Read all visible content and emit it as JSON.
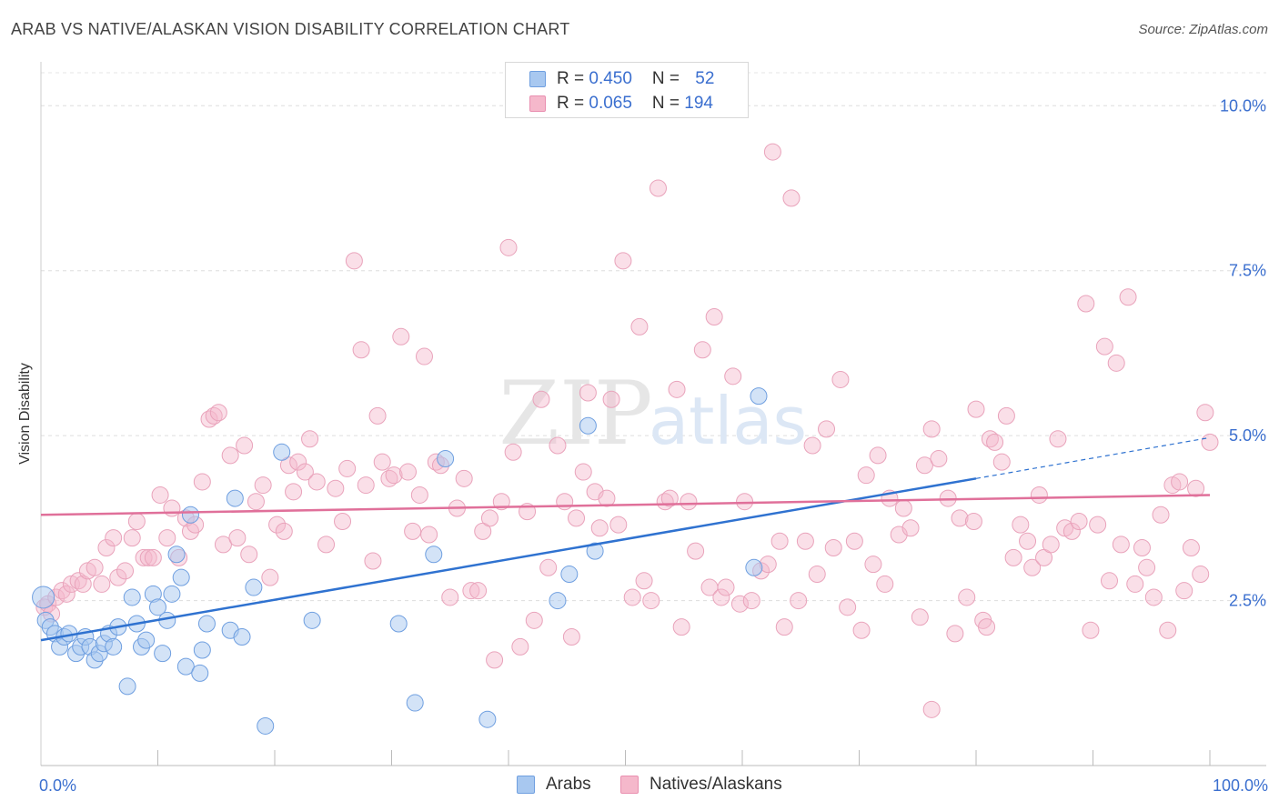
{
  "header": {
    "title": "ARAB VS NATIVE/ALASKAN VISION DISABILITY CORRELATION CHART",
    "source": "Source: ZipAtlas.com"
  },
  "watermark": {
    "zip": "ZIP",
    "atlas": "atlas"
  },
  "legend_top": {
    "rows": [
      {
        "r_label": "R = ",
        "r_value": "0.450",
        "n_label": "N = ",
        "n_value": "52",
        "color": "#a8c8f0"
      },
      {
        "r_label": "R = ",
        "r_value": "0.065",
        "n_label": "N = ",
        "n_value": "194",
        "color": "#f5b8cb"
      }
    ]
  },
  "legend_bottom": {
    "items": [
      {
        "label": "Arabs",
        "color": "#a8c8f0"
      },
      {
        "label": "Natives/Alaskans",
        "color": "#f5b8cb"
      }
    ]
  },
  "chart_data": {
    "type": "scatter",
    "title": "ARAB VS NATIVE/ALASKAN VISION DISABILITY CORRELATION CHART",
    "xlabel": "",
    "ylabel": "Vision Disability",
    "xlim": [
      0,
      100
    ],
    "ylim": [
      0,
      10.5
    ],
    "x_tick_labels": [
      "0.0%",
      "100.0%"
    ],
    "y_ticks": [
      2.5,
      5.0,
      7.5,
      10.0
    ],
    "y_tick_labels": [
      "2.5%",
      "5.0%",
      "7.5%",
      "10.0%"
    ],
    "grid": true,
    "legend": "top-center",
    "colors": {
      "arabs": "#4a86d8",
      "natives": "#e57fa3",
      "arabs_line": "#2f72d0",
      "natives_line": "#e0709a"
    },
    "series": [
      {
        "name": "Arabs",
        "trend": {
          "x": [
            0,
            80
          ],
          "y": [
            1.9,
            4.35
          ],
          "dashed_to": [
            100,
            4.97
          ]
        },
        "points": [
          [
            0.2,
            2.55
          ],
          [
            0.4,
            2.2
          ],
          [
            0.8,
            2.1
          ],
          [
            1.2,
            2.0
          ],
          [
            1.6,
            1.8
          ],
          [
            2.0,
            1.95
          ],
          [
            2.4,
            2.0
          ],
          [
            3.0,
            1.7
          ],
          [
            3.4,
            1.8
          ],
          [
            3.8,
            1.95
          ],
          [
            4.2,
            1.8
          ],
          [
            4.6,
            1.6
          ],
          [
            5.0,
            1.7
          ],
          [
            5.4,
            1.85
          ],
          [
            5.8,
            2.0
          ],
          [
            6.2,
            1.8
          ],
          [
            6.6,
            2.1
          ],
          [
            7.4,
            1.2
          ],
          [
            7.8,
            2.55
          ],
          [
            8.2,
            2.15
          ],
          [
            8.6,
            1.8
          ],
          [
            9.0,
            1.9
          ],
          [
            9.6,
            2.6
          ],
          [
            10.0,
            2.4
          ],
          [
            10.4,
            1.7
          ],
          [
            10.8,
            2.2
          ],
          [
            11.2,
            2.6
          ],
          [
            11.6,
            3.2
          ],
          [
            12.0,
            2.85
          ],
          [
            12.4,
            1.5
          ],
          [
            12.8,
            3.8
          ],
          [
            13.6,
            1.4
          ],
          [
            13.8,
            1.75
          ],
          [
            14.2,
            2.15
          ],
          [
            16.2,
            2.05
          ],
          [
            16.6,
            4.05
          ],
          [
            17.2,
            1.95
          ],
          [
            18.2,
            2.7
          ],
          [
            19.2,
            0.6
          ],
          [
            20.6,
            4.75
          ],
          [
            23.2,
            2.2
          ],
          [
            30.6,
            2.15
          ],
          [
            32.0,
            0.95
          ],
          [
            33.6,
            3.2
          ],
          [
            34.6,
            4.65
          ],
          [
            38.2,
            0.7
          ],
          [
            44.2,
            2.5
          ],
          [
            45.2,
            2.9
          ],
          [
            46.8,
            5.15
          ],
          [
            47.4,
            3.25
          ],
          [
            61.0,
            3.0
          ],
          [
            61.4,
            5.6
          ]
        ]
      },
      {
        "name": "Natives/Alaskans",
        "trend": {
          "x": [
            0,
            100
          ],
          "y": [
            3.8,
            4.1
          ]
        },
        "points": [
          [
            0.3,
            2.4
          ],
          [
            0.6,
            2.45
          ],
          [
            0.9,
            2.3
          ],
          [
            1.3,
            2.55
          ],
          [
            1.8,
            2.65
          ],
          [
            2.2,
            2.6
          ],
          [
            2.6,
            2.75
          ],
          [
            3.2,
            2.8
          ],
          [
            3.6,
            2.75
          ],
          [
            4.0,
            2.95
          ],
          [
            4.6,
            3.0
          ],
          [
            5.2,
            2.75
          ],
          [
            5.6,
            3.3
          ],
          [
            6.2,
            3.45
          ],
          [
            6.6,
            2.85
          ],
          [
            7.2,
            2.95
          ],
          [
            7.8,
            3.45
          ],
          [
            8.2,
            3.7
          ],
          [
            8.8,
            3.15
          ],
          [
            9.2,
            3.15
          ],
          [
            9.6,
            3.15
          ],
          [
            10.2,
            4.1
          ],
          [
            10.8,
            3.45
          ],
          [
            11.2,
            3.9
          ],
          [
            11.8,
            3.15
          ],
          [
            12.4,
            3.75
          ],
          [
            12.8,
            3.55
          ],
          [
            13.2,
            3.65
          ],
          [
            13.8,
            4.3
          ],
          [
            14.4,
            5.25
          ],
          [
            14.8,
            5.3
          ],
          [
            15.2,
            5.35
          ],
          [
            15.6,
            3.35
          ],
          [
            16.2,
            4.7
          ],
          [
            16.8,
            3.45
          ],
          [
            17.4,
            4.85
          ],
          [
            17.8,
            3.2
          ],
          [
            18.4,
            4.0
          ],
          [
            19.0,
            4.25
          ],
          [
            19.6,
            2.85
          ],
          [
            20.2,
            3.65
          ],
          [
            20.8,
            3.55
          ],
          [
            21.2,
            4.55
          ],
          [
            21.6,
            4.15
          ],
          [
            22.0,
            4.6
          ],
          [
            22.6,
            4.45
          ],
          [
            23.0,
            4.95
          ],
          [
            23.6,
            4.3
          ],
          [
            24.4,
            3.35
          ],
          [
            25.2,
            4.2
          ],
          [
            25.8,
            3.7
          ],
          [
            26.2,
            4.5
          ],
          [
            26.8,
            7.65
          ],
          [
            27.4,
            6.3
          ],
          [
            27.8,
            4.25
          ],
          [
            28.4,
            3.1
          ],
          [
            28.8,
            5.3
          ],
          [
            29.2,
            4.6
          ],
          [
            29.8,
            4.35
          ],
          [
            30.2,
            4.4
          ],
          [
            30.8,
            6.5
          ],
          [
            31.4,
            4.45
          ],
          [
            31.8,
            3.55
          ],
          [
            32.4,
            4.1
          ],
          [
            32.8,
            6.2
          ],
          [
            33.2,
            3.5
          ],
          [
            33.8,
            4.6
          ],
          [
            34.2,
            4.55
          ],
          [
            35.0,
            2.55
          ],
          [
            35.6,
            3.9
          ],
          [
            36.2,
            4.35
          ],
          [
            36.8,
            2.65
          ],
          [
            37.4,
            2.65
          ],
          [
            37.8,
            3.55
          ],
          [
            38.4,
            3.75
          ],
          [
            38.8,
            1.6
          ],
          [
            39.4,
            4.0
          ],
          [
            40.0,
            7.85
          ],
          [
            40.4,
            4.75
          ],
          [
            41.0,
            1.8
          ],
          [
            41.6,
            3.85
          ],
          [
            42.2,
            2.2
          ],
          [
            42.8,
            5.55
          ],
          [
            43.4,
            3.0
          ],
          [
            44.2,
            4.85
          ],
          [
            44.8,
            4.0
          ],
          [
            45.4,
            1.95
          ],
          [
            45.8,
            3.75
          ],
          [
            46.4,
            4.45
          ],
          [
            46.8,
            5.65
          ],
          [
            47.4,
            4.15
          ],
          [
            47.8,
            3.6
          ],
          [
            48.4,
            4.05
          ],
          [
            48.8,
            5.55
          ],
          [
            49.4,
            3.65
          ],
          [
            49.8,
            7.65
          ],
          [
            50.6,
            2.55
          ],
          [
            51.2,
            6.65
          ],
          [
            51.6,
            2.8
          ],
          [
            52.2,
            2.5
          ],
          [
            52.8,
            8.75
          ],
          [
            53.4,
            4.0
          ],
          [
            53.8,
            4.05
          ],
          [
            54.4,
            5.7
          ],
          [
            54.8,
            2.1
          ],
          [
            55.4,
            4.0
          ],
          [
            56.0,
            3.25
          ],
          [
            56.6,
            6.3
          ],
          [
            57.2,
            2.7
          ],
          [
            57.6,
            6.8
          ],
          [
            58.2,
            2.55
          ],
          [
            58.6,
            2.7
          ],
          [
            59.2,
            5.9
          ],
          [
            59.8,
            2.45
          ],
          [
            60.2,
            4.0
          ],
          [
            60.8,
            2.5
          ],
          [
            61.6,
            2.95
          ],
          [
            62.2,
            3.05
          ],
          [
            62.6,
            9.3
          ],
          [
            63.2,
            3.4
          ],
          [
            63.6,
            2.1
          ],
          [
            64.2,
            8.6
          ],
          [
            64.8,
            2.5
          ],
          [
            65.4,
            3.4
          ],
          [
            66.0,
            4.85
          ],
          [
            66.4,
            2.9
          ],
          [
            67.2,
            5.1
          ],
          [
            67.8,
            3.3
          ],
          [
            68.4,
            5.85
          ],
          [
            69.0,
            2.4
          ],
          [
            69.6,
            3.4
          ],
          [
            70.2,
            2.05
          ],
          [
            70.6,
            4.4
          ],
          [
            71.2,
            3.05
          ],
          [
            71.6,
            4.7
          ],
          [
            72.2,
            2.75
          ],
          [
            72.6,
            4.05
          ],
          [
            73.4,
            3.5
          ],
          [
            73.8,
            3.9
          ],
          [
            74.4,
            3.6
          ],
          [
            75.2,
            2.25
          ],
          [
            75.6,
            4.55
          ],
          [
            76.2,
            5.1
          ],
          [
            76.8,
            4.65
          ],
          [
            77.6,
            4.05
          ],
          [
            78.2,
            2.0
          ],
          [
            78.6,
            3.75
          ],
          [
            79.2,
            2.55
          ],
          [
            80.0,
            5.4
          ],
          [
            80.6,
            2.2
          ],
          [
            81.2,
            4.95
          ],
          [
            81.6,
            4.9
          ],
          [
            82.2,
            4.6
          ],
          [
            82.6,
            5.3
          ],
          [
            83.2,
            3.15
          ],
          [
            83.8,
            3.65
          ],
          [
            84.4,
            3.4
          ],
          [
            84.8,
            3.0
          ],
          [
            85.4,
            4.1
          ],
          [
            85.8,
            3.15
          ],
          [
            86.4,
            3.35
          ],
          [
            87.0,
            4.95
          ],
          [
            87.6,
            3.6
          ],
          [
            88.2,
            3.55
          ],
          [
            88.8,
            3.7
          ],
          [
            89.4,
            7.0
          ],
          [
            89.8,
            2.05
          ],
          [
            90.4,
            3.65
          ],
          [
            91.0,
            6.35
          ],
          [
            91.4,
            2.8
          ],
          [
            92.0,
            6.1
          ],
          [
            92.4,
            3.35
          ],
          [
            93.0,
            7.1
          ],
          [
            93.6,
            2.75
          ],
          [
            94.2,
            3.3
          ],
          [
            94.6,
            3.0
          ],
          [
            95.2,
            2.55
          ],
          [
            95.8,
            3.8
          ],
          [
            96.4,
            2.05
          ],
          [
            96.8,
            4.25
          ],
          [
            97.4,
            4.3
          ],
          [
            97.8,
            2.65
          ],
          [
            98.4,
            3.3
          ],
          [
            98.8,
            4.2
          ],
          [
            99.2,
            2.9
          ],
          [
            99.6,
            5.35
          ],
          [
            100.0,
            4.9
          ],
          [
            76.2,
            0.85
          ],
          [
            80.9,
            2.1
          ],
          [
            79.8,
            3.7
          ]
        ]
      }
    ]
  }
}
